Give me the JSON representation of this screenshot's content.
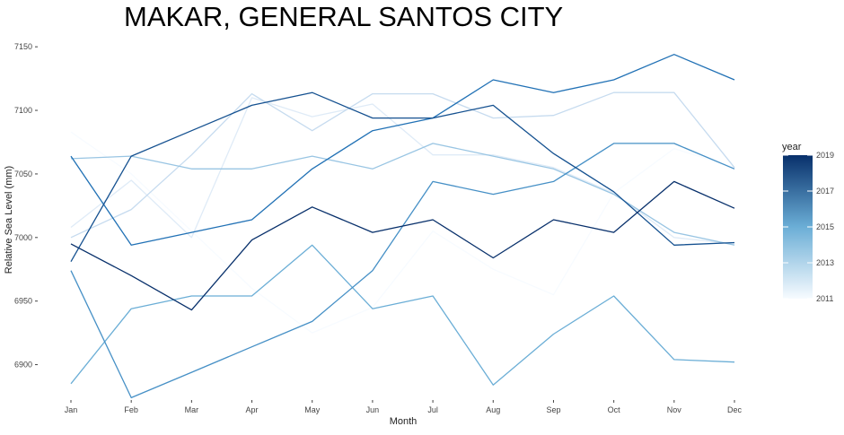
{
  "chart_data": {
    "type": "line",
    "title": "MAKAR, GENERAL SANTOS CITY",
    "xlabel": "Month",
    "ylabel": "Relative Sea Level (mm)",
    "categories": [
      "Jan",
      "Feb",
      "Mar",
      "Apr",
      "May",
      "Jun",
      "Jul",
      "Aug",
      "Sep",
      "Oct",
      "Nov",
      "Dec"
    ],
    "ylim": [
      6875,
      7160
    ],
    "yticks": [
      6900,
      6950,
      7000,
      7050,
      7100,
      7150
    ],
    "grid": false,
    "legend": {
      "title": "year",
      "placement": "right",
      "min": 2011,
      "max": 2019,
      "ticks": [
        2011,
        2013,
        2015,
        2017,
        2019
      ],
      "color_low": "#f7fbff",
      "color_high": "#08306b"
    },
    "series": [
      {
        "year": 2011,
        "values": [
          7083,
          7050,
          7005,
          6960,
          6925,
          6945,
          7005,
          6975,
          6955,
          7035,
          7070,
          7055
        ]
      },
      {
        "year": 2012,
        "values": [
          7008,
          7045,
          7000,
          7110,
          7095,
          7105,
          7065,
          7065,
          7055,
          7035,
          7000,
          6995
        ]
      },
      {
        "year": 2013,
        "values": [
          7000,
          7022,
          7065,
          7113,
          7084,
          7113,
          7113,
          7094,
          7096,
          7114,
          7114,
          7055
        ]
      },
      {
        "year": 2014,
        "values": [
          7062,
          7064,
          7054,
          7054,
          7064,
          7054,
          7074,
          7064,
          7054,
          7034,
          7004,
          6994
        ]
      },
      {
        "year": 2015,
        "values": [
          6885,
          6944,
          6954,
          6954,
          6994,
          6944,
          6954,
          6884,
          6924,
          6954,
          6904,
          6902
        ]
      },
      {
        "year": 2016,
        "values": [
          6974,
          6874,
          6894,
          6914,
          6934,
          6974,
          7044,
          7034,
          7044,
          7074,
          7074,
          7054
        ]
      },
      {
        "year": 2017,
        "values": [
          7064,
          6994,
          7004,
          7014,
          7054,
          7084,
          7094,
          7124,
          7114,
          7124,
          7144,
          7124
        ]
      },
      {
        "year": 2018,
        "values": [
          6981,
          7064,
          7084,
          7104,
          7114,
          7094,
          7094,
          7104,
          7066,
          7036,
          6994,
          6996
        ]
      },
      {
        "year": 2019,
        "values": [
          6995,
          6970,
          6943,
          6998,
          7024,
          7004,
          7014,
          6984,
          7014,
          7004,
          7044,
          7023
        ]
      }
    ]
  }
}
